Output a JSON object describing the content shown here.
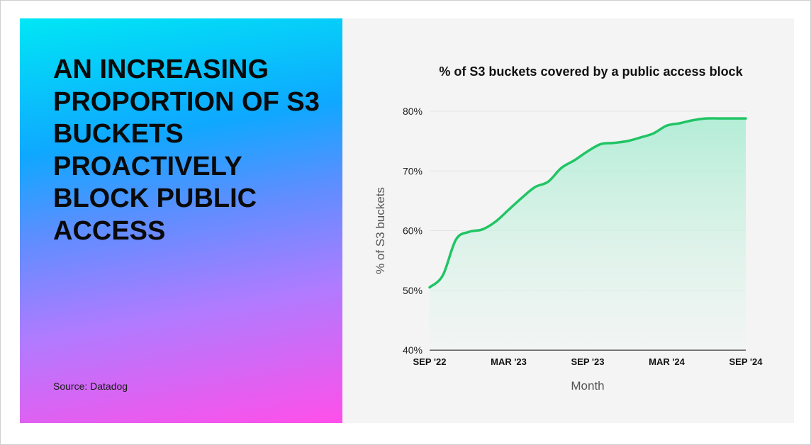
{
  "headline": "An increasing proportion of S3 buckets proactively block public access",
  "source": "Source: Datadog",
  "colors": {
    "line": "#21c465",
    "area_top": "#a8ecd2",
    "area_bottom": "#f4f4f4",
    "gradient": [
      "#00e7f5",
      "#0fa8ff",
      "#b07bff",
      "#ff4fe9"
    ]
  },
  "chart_data": {
    "type": "area",
    "title": "% of S3 buckets covered by a public access block",
    "xlabel": "Month",
    "ylabel": "% of S3 buckets",
    "ylim": [
      40,
      80
    ],
    "yticks": [
      "40%",
      "50%",
      "60%",
      "70%",
      "80%"
    ],
    "xticks": [
      "SEP '22",
      "MAR '23",
      "SEP '23",
      "MAR '24",
      "SEP '24"
    ],
    "grid": true,
    "legend": "none",
    "x": [
      "SEP '22",
      "OCT '22",
      "NOV '22",
      "DEC '22",
      "JAN '23",
      "FEB '23",
      "MAR '23",
      "APR '23",
      "MAY '23",
      "JUN '23",
      "JUL '23",
      "AUG '23",
      "SEP '23",
      "OCT '23",
      "NOV '23",
      "DEC '23",
      "JAN '24",
      "FEB '24",
      "MAR '24",
      "APR '24",
      "MAY '24",
      "JUN '24",
      "JUL '24",
      "AUG '24",
      "SEP '24"
    ],
    "series": [
      {
        "values": [
          50.5,
          52.5,
          58.5,
          59.8,
          60.2,
          61.5,
          63.5,
          65.5,
          67.3,
          68.2,
          70.5,
          71.8,
          73.3,
          74.5,
          74.7,
          75.0,
          75.6,
          76.3,
          77.6,
          78.0,
          78.5,
          78.8,
          78.8,
          78.8,
          78.8
        ]
      }
    ]
  }
}
